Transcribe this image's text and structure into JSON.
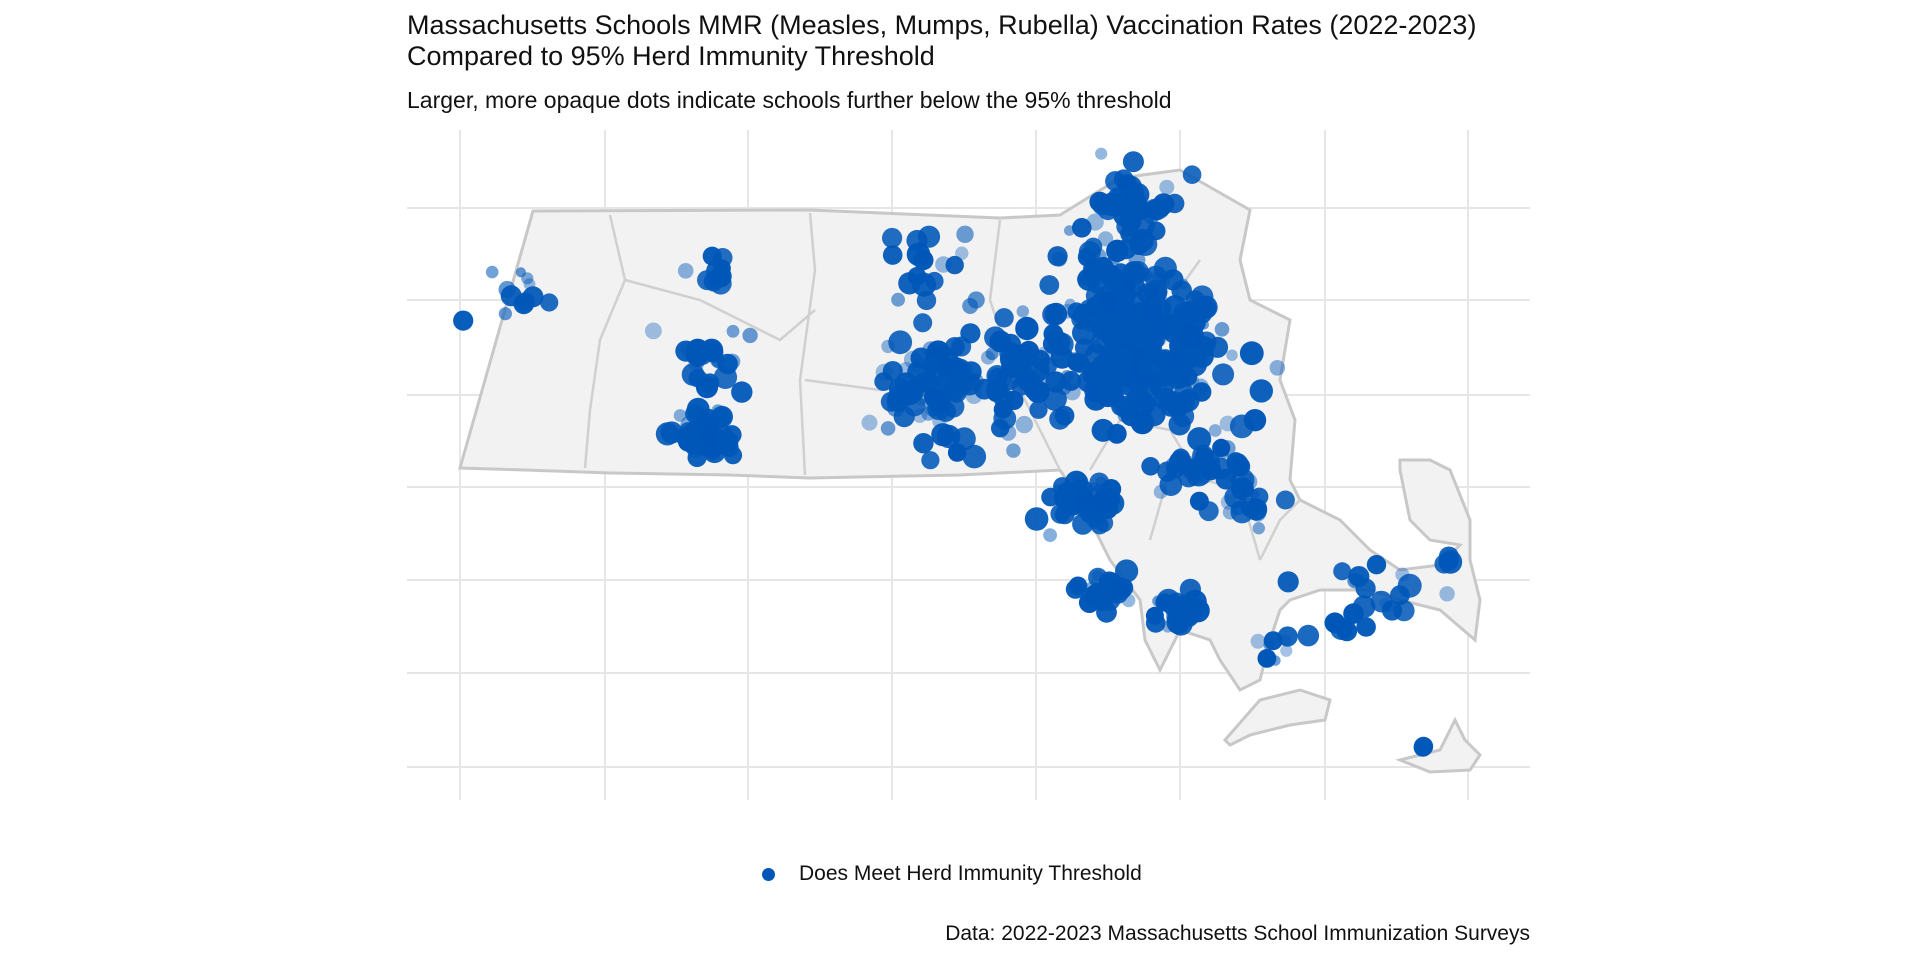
{
  "title": "Massachusetts Schools MMR (Measles, Mumps, Rubella) Vaccination Rates (2022-2023)\nCompared to 95% Herd Immunity Threshold",
  "subtitle": "Larger, more opaque dots indicate schools further below the 95% threshold",
  "legend": {
    "label": "Does Meet Herd Immunity Threshold",
    "color": "#0057b8"
  },
  "caption": "Data: 2022-2023 Massachusetts School Immunization Surveys",
  "map_data": {
    "type": "scatter-map",
    "region": "Massachusetts",
    "point_color": "#0057b8",
    "land_color": "#f2f2f2",
    "border_color": "#c8c8c8",
    "lon_range": [
      -73.5,
      -69.9
    ],
    "lat_range": [
      41.2,
      42.9
    ],
    "clusters": [
      {
        "lon": -71.06,
        "lat": 42.36,
        "n": 240,
        "spread": 0.2
      },
      {
        "lon": -71.18,
        "lat": 42.55,
        "n": 90,
        "spread": 0.17
      },
      {
        "lon": -71.1,
        "lat": 42.78,
        "n": 40,
        "spread": 0.12
      },
      {
        "lon": -71.8,
        "lat": 42.28,
        "n": 70,
        "spread": 0.16
      },
      {
        "lon": -71.5,
        "lat": 42.3,
        "n": 60,
        "spread": 0.14
      },
      {
        "lon": -72.58,
        "lat": 42.13,
        "n": 45,
        "spread": 0.08
      },
      {
        "lon": -72.6,
        "lat": 42.33,
        "n": 25,
        "spread": 0.1
      },
      {
        "lon": -72.55,
        "lat": 42.6,
        "n": 10,
        "spread": 0.07
      },
      {
        "lon": -73.2,
        "lat": 42.5,
        "n": 12,
        "spread": 0.12
      },
      {
        "lon": -71.8,
        "lat": 42.6,
        "n": 18,
        "spread": 0.14
      },
      {
        "lon": -71.25,
        "lat": 41.95,
        "n": 40,
        "spread": 0.09
      },
      {
        "lon": -71.2,
        "lat": 41.72,
        "n": 30,
        "spread": 0.06
      },
      {
        "lon": -70.95,
        "lat": 41.65,
        "n": 28,
        "spread": 0.06
      },
      {
        "lon": -70.85,
        "lat": 42.05,
        "n": 40,
        "spread": 0.11
      },
      {
        "lon": -70.7,
        "lat": 41.95,
        "n": 15,
        "spread": 0.07
      },
      {
        "lon": -70.3,
        "lat": 41.67,
        "n": 24,
        "spread": 0.12
      },
      {
        "lon": -70.6,
        "lat": 41.55,
        "n": 8,
        "spread": 0.05
      },
      {
        "lon": -70.0,
        "lat": 41.8,
        "n": 4,
        "spread": 0.03
      },
      {
        "lon": -70.1,
        "lat": 41.28,
        "n": 3,
        "spread": 0.01
      }
    ]
  }
}
